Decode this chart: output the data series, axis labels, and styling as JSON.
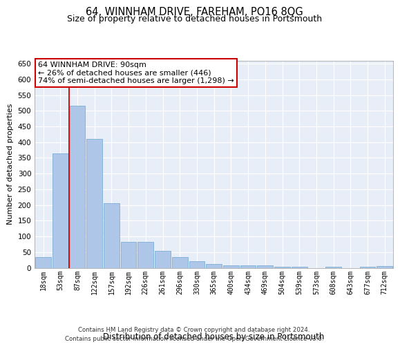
{
  "title": "64, WINNHAM DRIVE, FAREHAM, PO16 8QG",
  "subtitle": "Size of property relative to detached houses in Portsmouth",
  "xlabel": "Distribution of detached houses by size in Portsmouth",
  "ylabel": "Number of detached properties",
  "bar_labels": [
    "18sqm",
    "53sqm",
    "87sqm",
    "122sqm",
    "157sqm",
    "192sqm",
    "226sqm",
    "261sqm",
    "296sqm",
    "330sqm",
    "365sqm",
    "400sqm",
    "434sqm",
    "469sqm",
    "504sqm",
    "539sqm",
    "573sqm",
    "608sqm",
    "643sqm",
    "677sqm",
    "712sqm"
  ],
  "bar_values": [
    35,
    365,
    515,
    410,
    205,
    83,
    83,
    55,
    35,
    22,
    12,
    8,
    8,
    8,
    3,
    3,
    0,
    3,
    0,
    3,
    5
  ],
  "bar_color": "#aec6e8",
  "bar_edgecolor": "#7aadd4",
  "red_line_x": 1.5,
  "annotation_text": "64 WINNHAM DRIVE: 90sqm\n← 26% of detached houses are smaller (446)\n74% of semi-detached houses are larger (1,298) →",
  "annotation_box_color": "#ffffff",
  "annotation_box_edgecolor": "#cc0000",
  "ylim": [
    0,
    660
  ],
  "yticks": [
    0,
    50,
    100,
    150,
    200,
    250,
    300,
    350,
    400,
    450,
    500,
    550,
    600,
    650
  ],
  "background_color": "#e8eef7",
  "footer_line1": "Contains HM Land Registry data © Crown copyright and database right 2024.",
  "footer_line2": "Contains public sector information licensed under the Open Government Licence v3.0."
}
